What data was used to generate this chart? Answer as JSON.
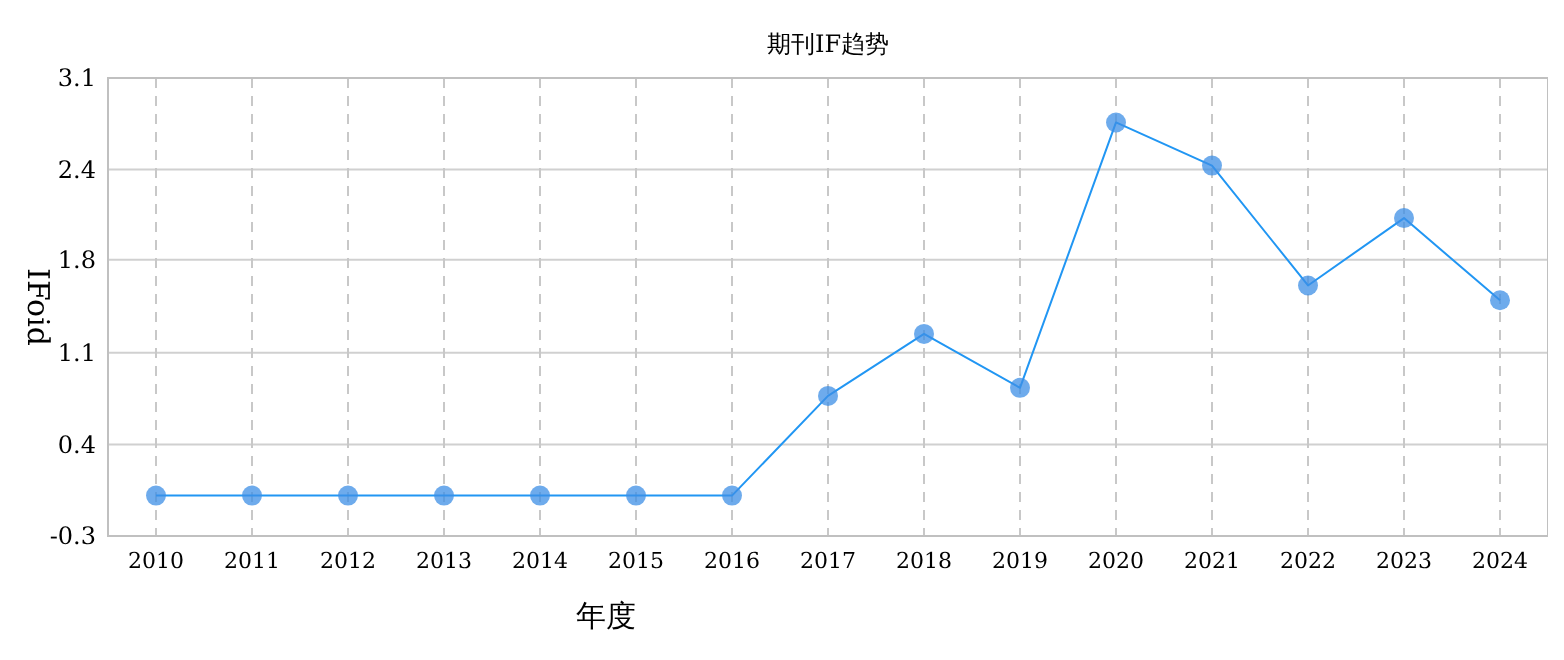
{
  "chart_data": {
    "type": "line",
    "title": "期刊IF趋势",
    "xlabel": "年度",
    "ylabel": "IFoid",
    "categories": [
      "2010",
      "2011",
      "2012",
      "2013",
      "2014",
      "2015",
      "2016",
      "2017",
      "2018",
      "2019",
      "2020",
      "2021",
      "2022",
      "2023",
      "2024"
    ],
    "series": [
      {
        "color": "#2196f3",
        "values": [
          0,
          0,
          0,
          0,
          0,
          0,
          0,
          0.74,
          1.2,
          0.8,
          2.77,
          2.45,
          1.56,
          2.06,
          1.45
        ]
      }
    ],
    "ylim": [
      -0.3,
      3.1
    ],
    "yticks": [
      -0.3,
      {
        "value": 0.38,
        "label": "0.4"
      },
      {
        "value": 1.06,
        "label": "1.1"
      },
      {
        "value": 1.75,
        "label": "1.8"
      },
      {
        "value": 2.42,
        "label": "2.4"
      },
      3.1
    ],
    "grid": true,
    "marker": "circle",
    "line_style": "solid"
  }
}
